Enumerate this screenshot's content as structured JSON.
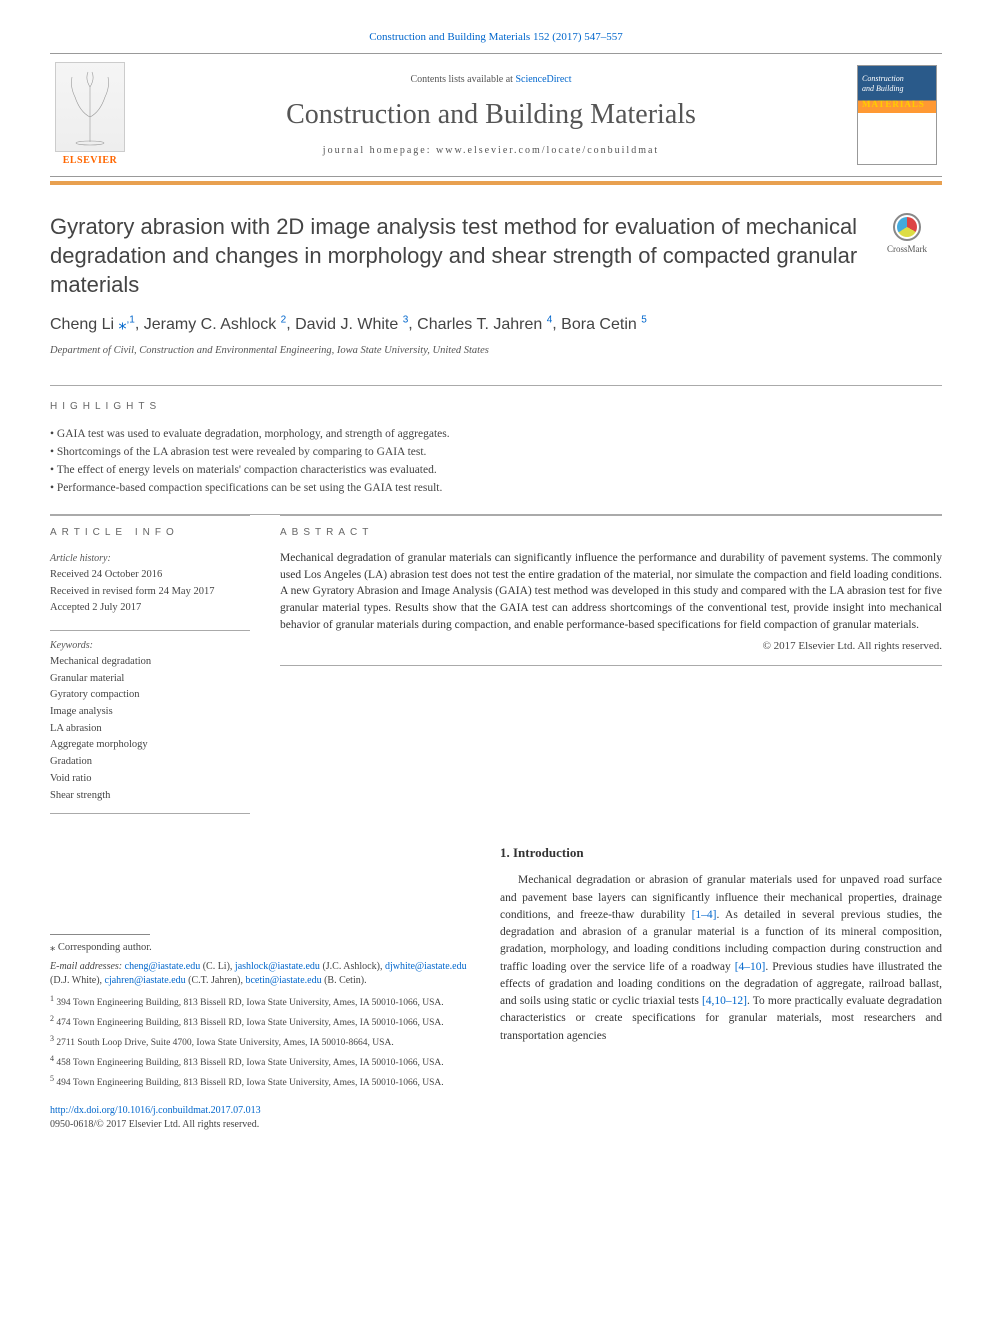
{
  "colors": {
    "link": "#0066cc",
    "accent_orange": "#e8a050",
    "elsevier_orange": "#ff6600",
    "cover_blue": "#2a5a8a",
    "cover_orange": "#ff9933",
    "text_main": "#333",
    "text_muted": "#555"
  },
  "fonts": {
    "body_family": "Georgia, 'Times New Roman', serif",
    "heading_family": "Arial, sans-serif",
    "body_size_pt": 11.5,
    "title_size_pt": 22,
    "journal_size_pt": 28
  },
  "header": {
    "citation": "Construction and Building Materials 152 (2017) 547–557",
    "contents_prefix": "Contents lists available at ",
    "contents_link": "ScienceDirect",
    "journal": "Construction and Building Materials",
    "homepage_label": "journal homepage: www.elsevier.com/locate/conbuildmat",
    "elsevier_label": "ELSEVIER",
    "cover_line1": "Construction",
    "cover_line2": "and Building",
    "cover_line3": "MATERIALS",
    "crossmark_label": "CrossMark"
  },
  "article": {
    "title": "Gyratory abrasion with 2D image analysis test method for evaluation of mechanical degradation and changes in morphology and shear strength of compacted granular materials",
    "affiliation": "Department of Civil, Construction and Environmental Engineering, Iowa State University, United States"
  },
  "authors": [
    {
      "name": "Cheng Li",
      "markers": "*,1"
    },
    {
      "name": "Jeramy C. Ashlock",
      "markers": "2"
    },
    {
      "name": "David J. White",
      "markers": "3"
    },
    {
      "name": "Charles T. Jahren",
      "markers": "4"
    },
    {
      "name": "Bora Cetin",
      "markers": "5"
    }
  ],
  "highlights": {
    "header": "HIGHLIGHTS",
    "items": [
      "GAIA test was used to evaluate degradation, morphology, and strength of aggregates.",
      "Shortcomings of the LA abrasion test were revealed by comparing to GAIA test.",
      "The effect of energy levels on materials' compaction characteristics was evaluated.",
      "Performance-based compaction specifications can be set using the GAIA test result."
    ]
  },
  "article_info": {
    "header": "ARTICLE INFO",
    "history_label": "Article history:",
    "received": "Received 24 October 2016",
    "revised": "Received in revised form 24 May 2017",
    "accepted": "Accepted 2 July 2017",
    "keywords_label": "Keywords:",
    "keywords": [
      "Mechanical degradation",
      "Granular material",
      "Gyratory compaction",
      "Image analysis",
      "LA abrasion",
      "Aggregate morphology",
      "Gradation",
      "Void ratio",
      "Shear strength"
    ]
  },
  "abstract": {
    "header": "ABSTRACT",
    "text": "Mechanical degradation of granular materials can significantly influence the performance and durability of pavement systems. The commonly used Los Angeles (LA) abrasion test does not test the entire gradation of the material, nor simulate the compaction and field loading conditions. A new Gyratory Abrasion and Image Analysis (GAIA) test method was developed in this study and compared with the LA abrasion test for five granular material types. Results show that the GAIA test can address shortcomings of the conventional test, provide insight into mechanical behavior of granular materials during compaction, and enable performance-based specifications for field compaction of granular materials.",
    "copyright": "© 2017 Elsevier Ltd. All rights reserved."
  },
  "footnotes": {
    "corresponding": "⁎ Corresponding author.",
    "email_label": "E-mail addresses: ",
    "emails": [
      {
        "addr": "cheng@iastate.edu",
        "who": " (C. Li), "
      },
      {
        "addr": "jashlock@iastate.edu",
        "who": " (J.C. Ashlock), "
      },
      {
        "addr": "djwhite@iastate.edu",
        "who": " (D.J. White), "
      },
      {
        "addr": "cjahren@iastate.edu",
        "who": " (C.T. Jahren), "
      },
      {
        "addr": "bcetin@iastate.edu",
        "who": " (B. Cetin)."
      }
    ],
    "addresses": [
      {
        "n": "1",
        "text": " 394 Town Engineering Building, 813 Bissell RD, Iowa State University, Ames, IA 50010-1066, USA."
      },
      {
        "n": "2",
        "text": " 474 Town Engineering Building, 813 Bissell RD, Iowa State University, Ames, IA 50010-1066, USA."
      },
      {
        "n": "3",
        "text": " 2711 South Loop Drive, Suite 4700, Iowa State University, Ames, IA 50010-8664, USA."
      },
      {
        "n": "4",
        "text": " 458 Town Engineering Building, 813 Bissell RD, Iowa State University, Ames, IA 50010-1066, USA."
      },
      {
        "n": "5",
        "text": " 494 Town Engineering Building, 813 Bissell RD, Iowa State University, Ames, IA 50010-1066, USA."
      }
    ],
    "doi": "http://dx.doi.org/10.1016/j.conbuildmat.2017.07.013",
    "issn_line": "0950-0618/© 2017 Elsevier Ltd. All rights reserved."
  },
  "intro": {
    "heading": "1. Introduction",
    "p1a": "Mechanical degradation or abrasion of granular materials used for unpaved road surface and pavement base layers can significantly influence their mechanical properties, drainage conditions, and freeze-thaw durability ",
    "ref1": "[1–4]",
    "p1b": ". As detailed in several previous studies, the degradation and abrasion of a granular material is a function of its mineral composition, gradation, morphology, and loading conditions including compaction during construction and traffic loading over the service life of a roadway ",
    "ref2": "[4–10]",
    "p1c": ". Previous studies have illustrated the effects of gradation and loading conditions on the degradation of aggregate, railroad ballast, and soils using static or cyclic triaxial tests ",
    "ref3": "[4,10–12]",
    "p1d": ". To more practically evaluate degradation characteristics or create specifications for granular materials, most researchers and transportation agencies"
  }
}
